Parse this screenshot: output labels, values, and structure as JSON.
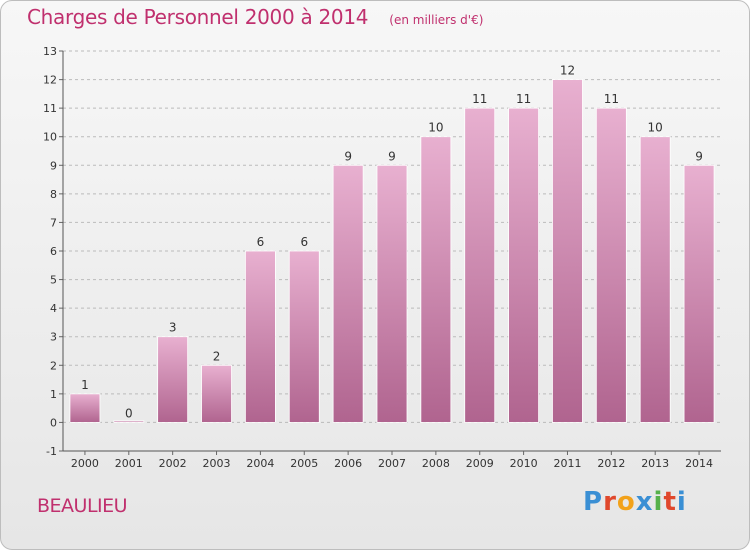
{
  "header": {
    "title": "Charges de Personnel 2000 à 2014",
    "subtitle": "(en milliers d'€)"
  },
  "footer": {
    "commune": "BEAULIEU",
    "logo_letters": [
      "P",
      "r",
      "o",
      "x",
      "i",
      "t",
      "i"
    ],
    "logo_colors": [
      "#3a8fd4",
      "#e0482c",
      "#f2a21b",
      "#3a8fd4",
      "#56b14a",
      "#e0482c",
      "#3a8fd4"
    ]
  },
  "colors": {
    "bar_top": "#e8b0d0",
    "bar_bottom": "#b0648f",
    "title": "#c0306e",
    "axis_text": "#333333",
    "grid": "#bbbbbb"
  },
  "chart_data": {
    "type": "bar",
    "categories": [
      "2000",
      "2001",
      "2002",
      "2003",
      "2004",
      "2005",
      "2006",
      "2007",
      "2008",
      "2009",
      "2010",
      "2011",
      "2012",
      "2013",
      "2014"
    ],
    "values": [
      1,
      0,
      3,
      2,
      6,
      6,
      9,
      9,
      10,
      11,
      11,
      12,
      11,
      10,
      9
    ],
    "data_labels": [
      "1",
      "0",
      "3",
      "2",
      "6",
      "6",
      "9",
      "9",
      "10",
      "11",
      "11",
      "12",
      "11",
      "10",
      "9"
    ],
    "ylim": [
      -1,
      13
    ],
    "yticks": [
      "-1",
      "0",
      "1",
      "2",
      "3",
      "4",
      "5",
      "6",
      "7",
      "8",
      "9",
      "10",
      "11",
      "12",
      "13"
    ],
    "grid": true,
    "legend": "none"
  }
}
